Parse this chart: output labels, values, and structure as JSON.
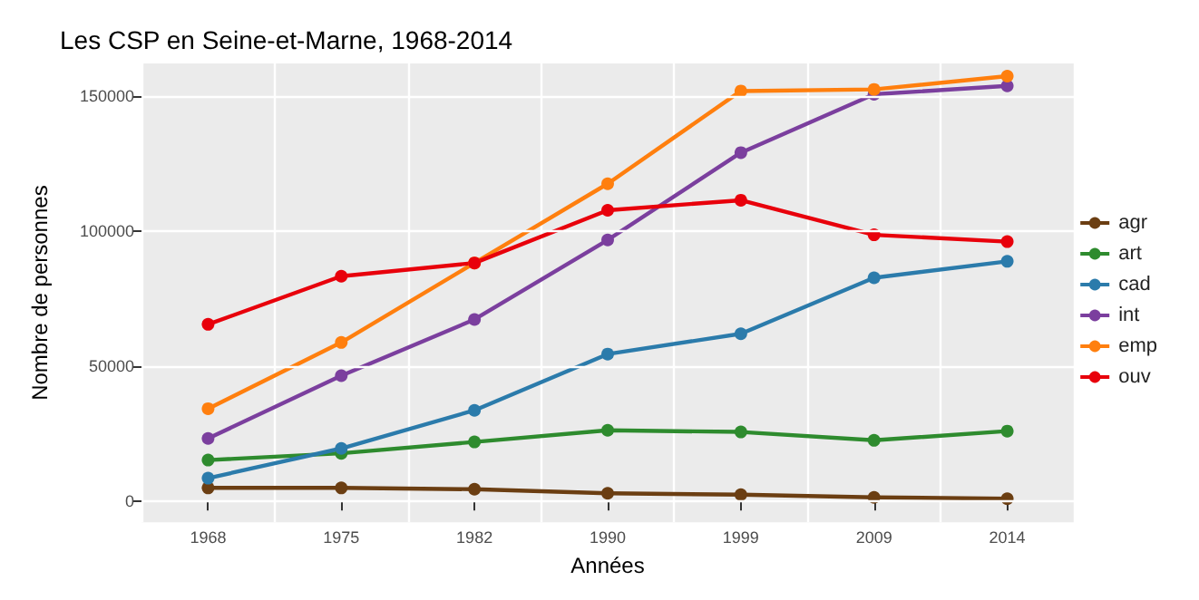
{
  "chart_data": {
    "type": "line",
    "title": "Les CSP en Seine-et-Marne, 1968-2014",
    "xlabel": "Années",
    "ylabel": "Nombre de personnes",
    "categories": [
      "1968",
      "1975",
      "1982",
      "1990",
      "1999",
      "2009",
      "2014"
    ],
    "series": [
      {
        "name": "agr",
        "color": "#6b3e12",
        "values": [
          5000,
          5000,
          4500,
          3000,
          2500,
          1500,
          1000
        ]
      },
      {
        "name": "art",
        "color": "#2e8b2e",
        "values": [
          15300,
          17800,
          22000,
          26300,
          25700,
          22600,
          26000
        ]
      },
      {
        "name": "cad",
        "color": "#2b7bab",
        "values": [
          8600,
          19600,
          33700,
          54500,
          62000,
          82700,
          88800
        ]
      },
      {
        "name": "int",
        "color": "#7b3f9e",
        "values": [
          23300,
          46500,
          67300,
          96700,
          129000,
          150600,
          153700
        ]
      },
      {
        "name": "emp",
        "color": "#ff7f0e",
        "values": [
          34300,
          58800,
          88200,
          117500,
          151800,
          152400,
          157300
        ]
      },
      {
        "name": "ouv",
        "color": "#e8000b",
        "values": [
          65500,
          83300,
          88200,
          107700,
          111400,
          98600,
          96100
        ]
      }
    ],
    "ylim": [
      -7700,
      162000
    ],
    "yticks": [
      0,
      50000,
      100000,
      150000
    ],
    "grid": true,
    "legend": "right",
    "marker": "circle",
    "line_style": "solid"
  }
}
